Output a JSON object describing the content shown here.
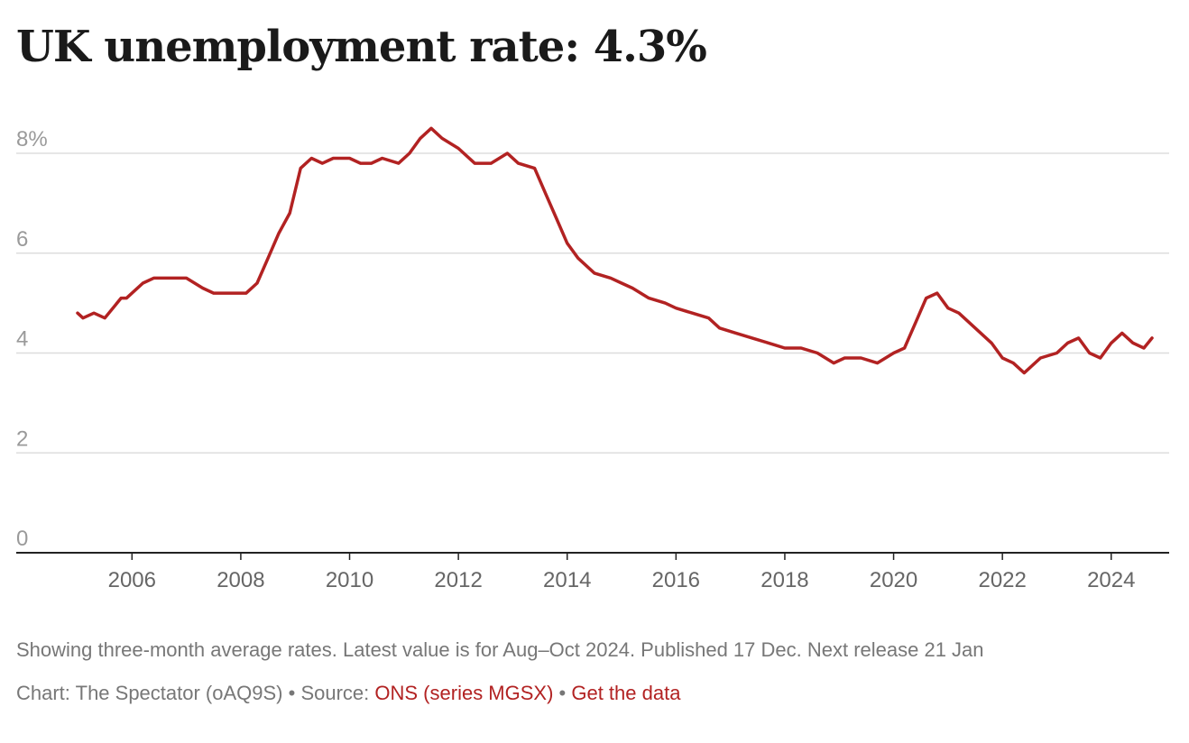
{
  "title": "UK unemployment rate: 4.3%",
  "footer": {
    "note": "Showing three-month average rates. Latest value is for Aug–Oct 2024. Published 17 Dec. Next release 21 Jan",
    "chart_by": "Chart: The Spectator (oAQ9S)",
    "separator": " • ",
    "source_label": "Source: ",
    "source_link": "ONS (series MGSX)",
    "data_link": "Get the data"
  },
  "colors": {
    "line": "#b22222",
    "grid": "#dddddd",
    "axis": "#222222"
  },
  "chart_data": {
    "type": "line",
    "title": "UK unemployment rate: 4.3%",
    "xlabel": "",
    "ylabel": "",
    "xlim": [
      2004.6,
      2025.5
    ],
    "ylim": [
      0,
      8.5
    ],
    "grid": true,
    "y_ticks": [
      0,
      2,
      4,
      6,
      8
    ],
    "y_tick_labels": [
      "0",
      "2",
      "4",
      "6",
      "8%"
    ],
    "x_ticks": [
      2006,
      2008,
      2010,
      2012,
      2014,
      2016,
      2018,
      2020,
      2022,
      2024
    ],
    "x_tick_labels": [
      "2006",
      "2008",
      "2010",
      "2012",
      "2014",
      "2016",
      "2018",
      "2020",
      "2022",
      "2024"
    ],
    "series": [
      {
        "x": [
          2005.0,
          2005.1,
          2005.3,
          2005.5,
          2005.8,
          2005.9,
          2006.0,
          2006.2,
          2006.4,
          2006.6,
          2007.0,
          2007.3,
          2007.5,
          2007.8,
          2008.1,
          2008.3,
          2008.5,
          2008.7,
          2008.9,
          2009.1,
          2009.3,
          2009.5,
          2009.7,
          2010.0,
          2010.2,
          2010.4,
          2010.6,
          2010.9,
          2011.1,
          2011.3,
          2011.5,
          2011.7,
          2012.0,
          2012.3,
          2012.6,
          2012.9,
          2013.1,
          2013.4,
          2013.6,
          2013.8,
          2014.0,
          2014.2,
          2014.5,
          2014.8,
          2015.0,
          2015.2,
          2015.5,
          2015.8,
          2016.0,
          2016.3,
          2016.6,
          2016.8,
          2017.1,
          2017.4,
          2017.7,
          2018.0,
          2018.3,
          2018.6,
          2018.9,
          2019.1,
          2019.4,
          2019.7,
          2020.0,
          2020.2,
          2020.4,
          2020.6,
          2020.8,
          2021.0,
          2021.2,
          2021.5,
          2021.8,
          2022.0,
          2022.2,
          2022.4,
          2022.7,
          2023.0,
          2023.2,
          2023.4,
          2023.6,
          2023.8,
          2024.0,
          2024.2,
          2024.4,
          2024.6,
          2024.75
        ],
        "y": [
          4.8,
          4.7,
          4.8,
          4.7,
          5.1,
          5.1,
          5.2,
          5.4,
          5.5,
          5.5,
          5.5,
          5.3,
          5.2,
          5.2,
          5.2,
          5.4,
          5.9,
          6.4,
          6.8,
          7.7,
          7.9,
          7.8,
          7.9,
          7.9,
          7.8,
          7.8,
          7.9,
          7.8,
          8.0,
          8.3,
          8.5,
          8.3,
          8.1,
          7.8,
          7.8,
          8.0,
          7.8,
          7.7,
          7.2,
          6.7,
          6.2,
          5.9,
          5.6,
          5.5,
          5.4,
          5.3,
          5.1,
          5.0,
          4.9,
          4.8,
          4.7,
          4.5,
          4.4,
          4.3,
          4.2,
          4.1,
          4.1,
          4.0,
          3.8,
          3.9,
          3.9,
          3.8,
          4.0,
          4.1,
          4.6,
          5.1,
          5.2,
          4.9,
          4.8,
          4.5,
          4.2,
          3.9,
          3.8,
          3.6,
          3.9,
          4.0,
          4.2,
          4.3,
          4.0,
          3.9,
          4.2,
          4.4,
          4.2,
          4.1,
          4.3
        ]
      }
    ]
  }
}
